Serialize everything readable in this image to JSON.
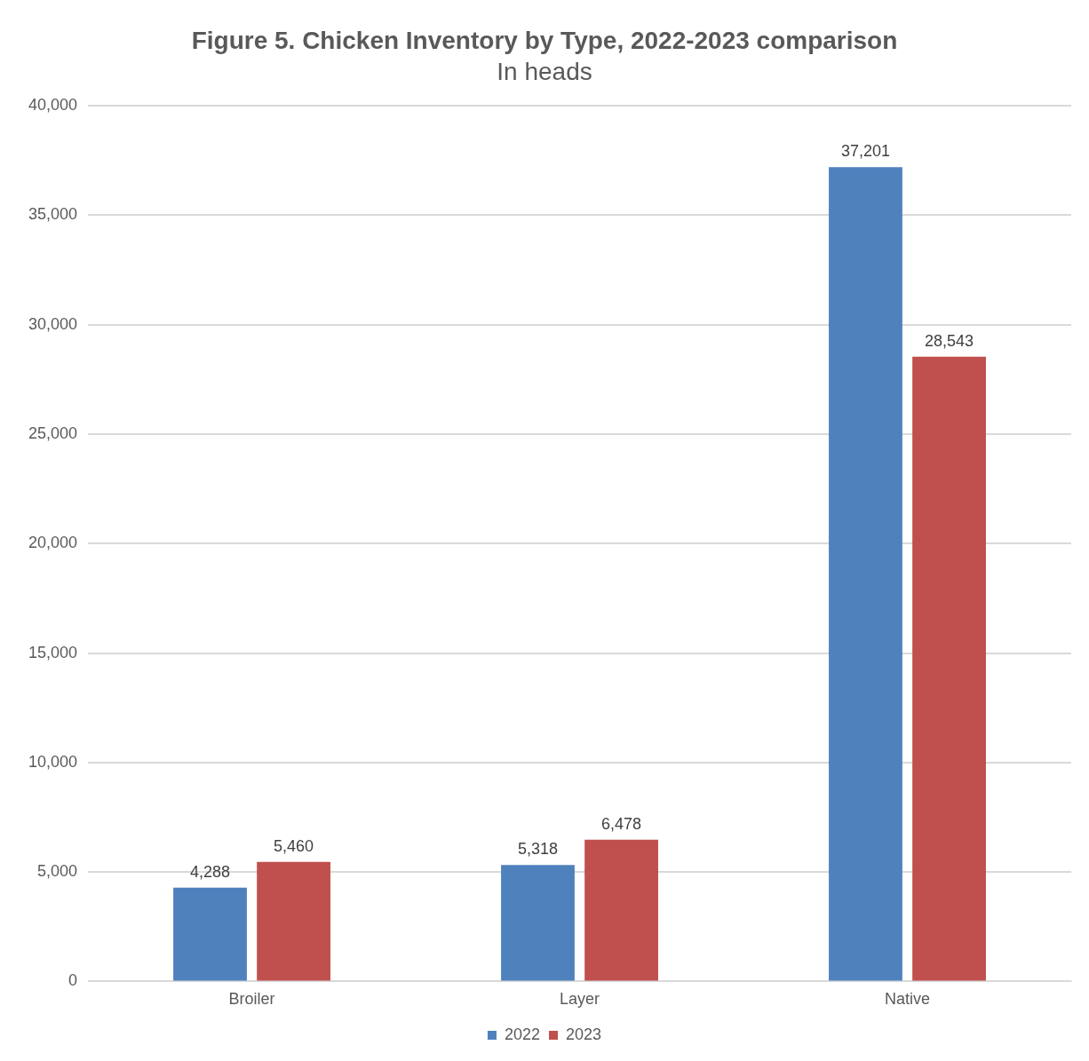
{
  "chart_data": {
    "type": "bar",
    "title": "Figure 5. Chicken Inventory by Type, 2022-2023 comparison",
    "subtitle": "In heads",
    "categories": [
      "Broiler",
      "Layer",
      "Native"
    ],
    "series": [
      {
        "name": "2022",
        "color": "#4f81bd",
        "values": [
          4288,
          5318,
          37201
        ],
        "value_labels": [
          "4,288",
          "5,318",
          "37,201"
        ]
      },
      {
        "name": "2023",
        "color": "#c0504d",
        "values": [
          5460,
          6478,
          28543
        ],
        "value_labels": [
          "5,460",
          "6,478",
          "28,543"
        ]
      }
    ],
    "ylim": [
      0,
      40000
    ],
    "yticks": [
      0,
      {
        "value": 5000,
        "label": "5,000"
      },
      {
        "value": 10000,
        "label": "10,000"
      },
      {
        "value": 15000,
        "label": "15,000"
      },
      {
        "value": 20000,
        "label": "20,000"
      },
      {
        "value": 25000,
        "label": "25,000"
      },
      {
        "value": 30000,
        "label": "30,000"
      },
      {
        "value": 35000,
        "label": "35,000"
      },
      {
        "value": 40000,
        "label": "40,000"
      }
    ],
    "grid": "y",
    "legend": "bottom"
  }
}
